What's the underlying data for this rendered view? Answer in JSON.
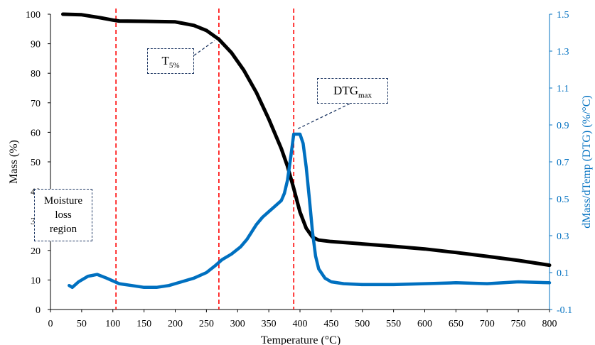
{
  "chart_data": {
    "type": "line",
    "xlabel": "Temperature (°C)",
    "ylabel": "Mass (%)",
    "y2label": "dMass/dTemp (DTG) (%/°C)",
    "xlim": [
      0,
      800
    ],
    "ylim": [
      0,
      100
    ],
    "y2lim": [
      -0.1,
      1.5
    ],
    "x_ticks": [
      "0",
      "50",
      "100",
      "150",
      "200",
      "250",
      "300",
      "350",
      "400",
      "450",
      "500",
      "550",
      "600",
      "650",
      "700",
      "750",
      "800"
    ],
    "y_ticks": [
      "0",
      "10",
      "20",
      "30",
      "40",
      "50",
      "60",
      "70",
      "80",
      "90",
      "100"
    ],
    "y2_ticks": [
      "-0.1",
      "0.1",
      "0.3",
      "0.5",
      "0.7",
      "0.9",
      "1.1",
      "1.3",
      "1.5"
    ],
    "grid": false,
    "legend": "none",
    "series": [
      {
        "axis": "left",
        "color": "#000000",
        "x": [
          20,
          50,
          80,
          100,
          110,
          150,
          200,
          230,
          250,
          270,
          290,
          310,
          330,
          350,
          370,
          380,
          390,
          400,
          410,
          420,
          430,
          450,
          500,
          550,
          600,
          650,
          700,
          750,
          800
        ],
        "y": [
          100,
          99.8,
          98.8,
          98.0,
          97.7,
          97.6,
          97.4,
          96.2,
          94.5,
          91.5,
          87.0,
          81.0,
          73.5,
          64.5,
          54.5,
          48.5,
          41.0,
          33.0,
          27.5,
          24.5,
          23.5,
          23.0,
          22.2,
          21.4,
          20.5,
          19.3,
          18.0,
          16.6,
          15.0
        ]
      },
      {
        "axis": "right",
        "color": "#0070c0",
        "x": [
          30,
          35,
          45,
          60,
          75,
          90,
          110,
          130,
          150,
          170,
          190,
          210,
          230,
          250,
          265,
          275,
          290,
          305,
          315,
          330,
          340,
          350,
          360,
          370,
          375,
          380,
          385,
          390,
          395,
          400,
          405,
          410,
          415,
          420,
          425,
          430,
          440,
          450,
          470,
          500,
          550,
          600,
          650,
          700,
          750,
          800
        ],
        "y": [
          0.03,
          0.02,
          0.05,
          0.08,
          0.09,
          0.07,
          0.04,
          0.03,
          0.02,
          0.02,
          0.03,
          0.05,
          0.07,
          0.1,
          0.14,
          0.17,
          0.2,
          0.24,
          0.28,
          0.36,
          0.4,
          0.43,
          0.46,
          0.49,
          0.53,
          0.6,
          0.72,
          0.85,
          0.85,
          0.85,
          0.8,
          0.67,
          0.5,
          0.32,
          0.19,
          0.12,
          0.07,
          0.05,
          0.04,
          0.035,
          0.035,
          0.04,
          0.045,
          0.04,
          0.05,
          0.045
        ]
      }
    ],
    "vlines": {
      "x": [
        105,
        270,
        390
      ],
      "color": "#ff0000"
    },
    "annotations": [
      {
        "key": "moisture",
        "lines": [
          "Moisture",
          "loss",
          "region"
        ]
      },
      {
        "key": "t5",
        "text": "T",
        "sub": "5%",
        "target": [
          270,
          92
        ]
      },
      {
        "key": "dtg",
        "text": "DTG",
        "sub": "max",
        "target": [
          390,
          61
        ]
      }
    ]
  }
}
